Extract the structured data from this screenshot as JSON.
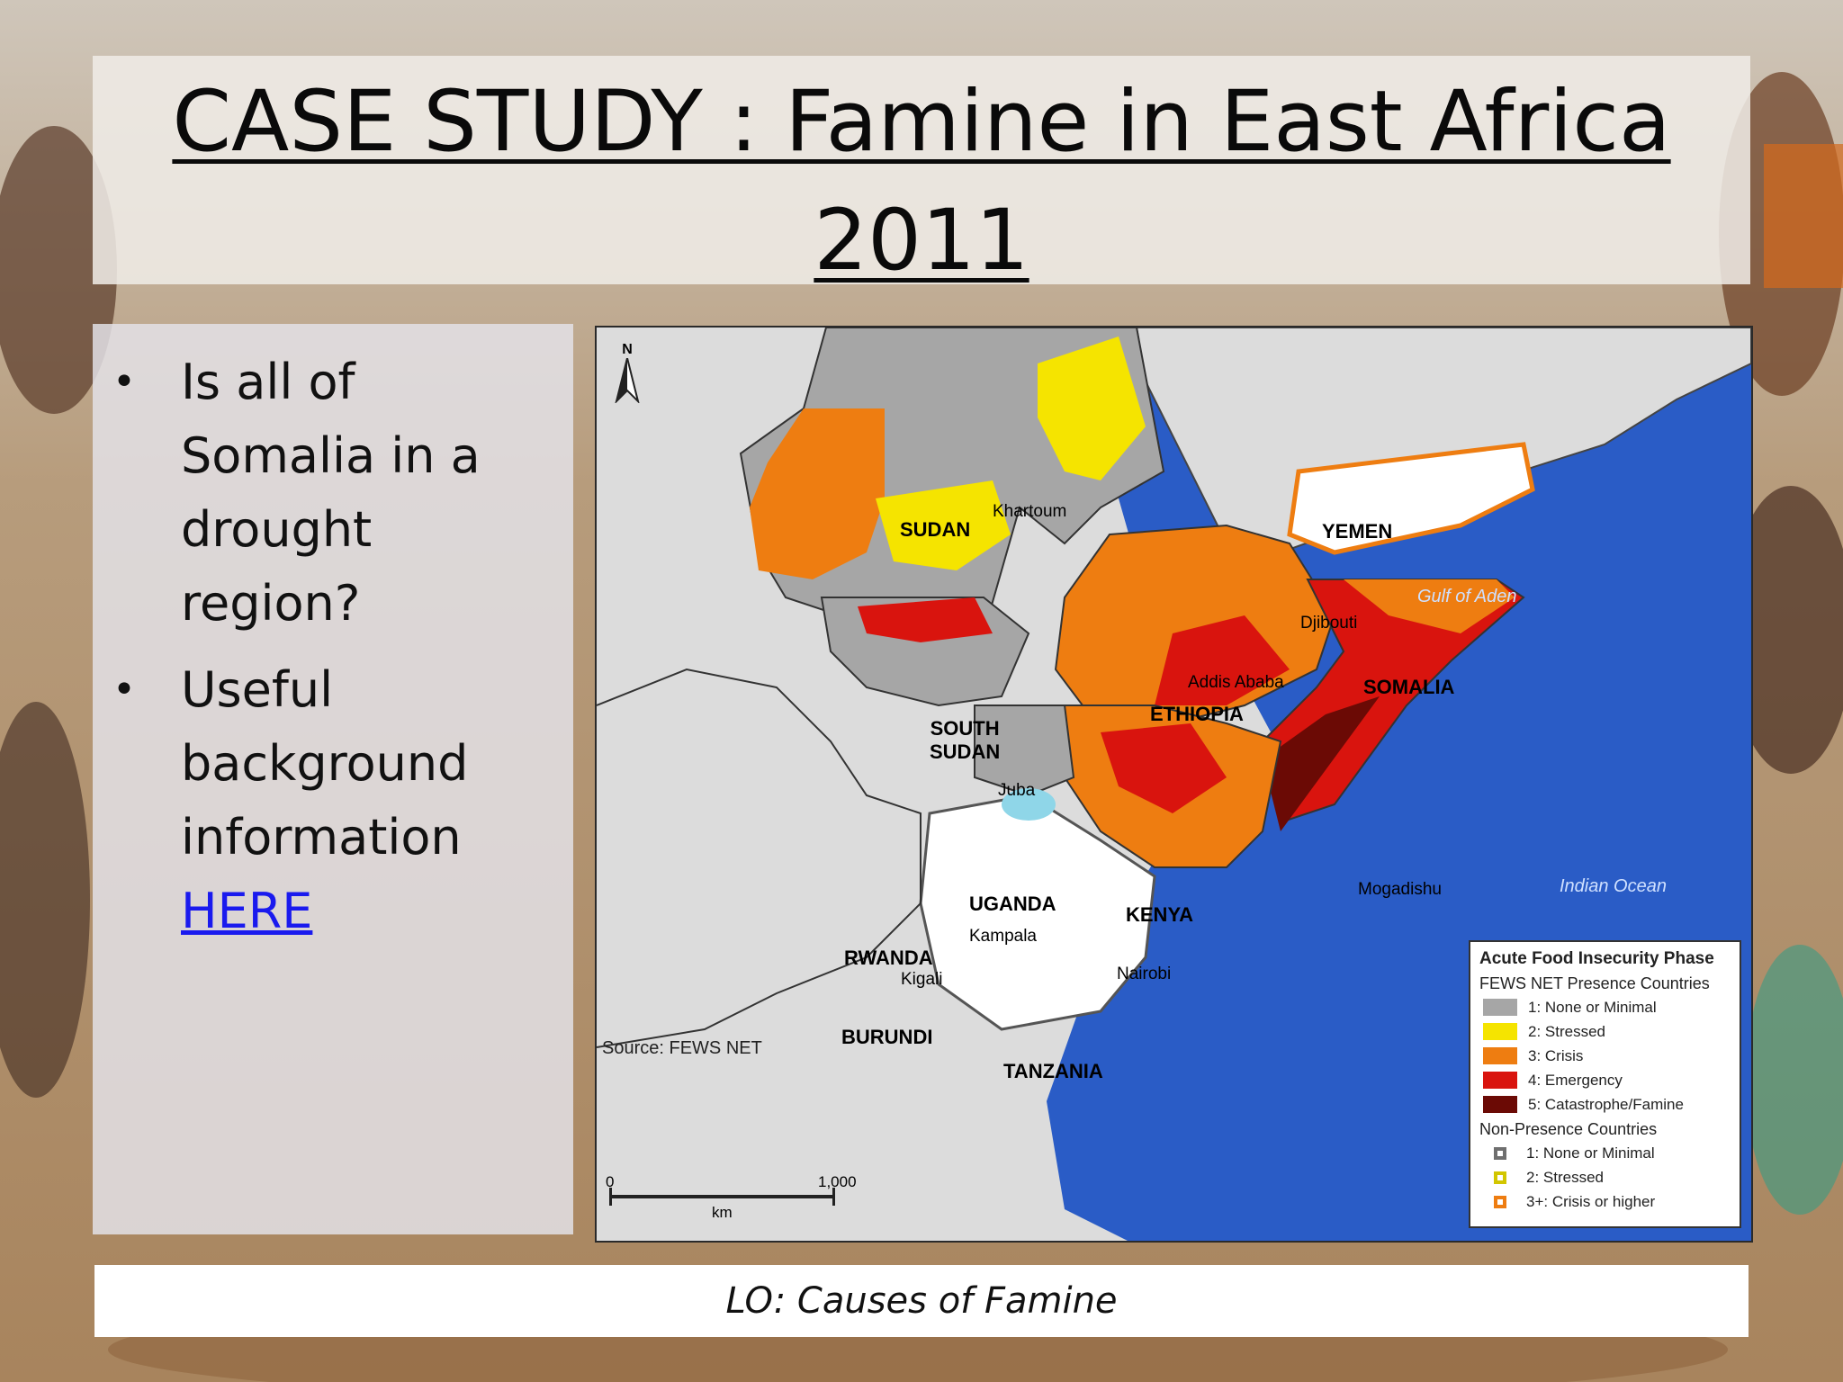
{
  "slide": {
    "title": "CASE STUDY : Famine in East Africa 2011",
    "bullets": [
      {
        "text": "Is all of Somalia in a drought region?"
      },
      {
        "text": "Useful background information",
        "link_text": "HERE"
      }
    ],
    "footer": "LO: Causes of Famine"
  },
  "map": {
    "north_arrow": "N",
    "countries": {
      "sudan": "SUDAN",
      "south_sudan_1": "SOUTH",
      "south_sudan_2": "SUDAN",
      "ethiopia": "ETHIOPIA",
      "somalia": "SOMALIA",
      "kenya": "KENYA",
      "uganda": "UGANDA",
      "rwanda": "RWANDA",
      "burundi": "BURUNDI",
      "tanzania": "TANZANIA",
      "yemen": "YEMEN"
    },
    "cities": {
      "khartoum": "Khartoum",
      "addis_ababa": "Addis Ababa",
      "djibouti": "Djibouti",
      "juba": "Juba",
      "kampala": "Kampala",
      "kigali": "Kigali",
      "nairobi": "Nairobi",
      "mogadishu": "Mogadishu"
    },
    "water": {
      "gulf_of_aden": "Gulf of Aden",
      "indian_ocean": "Indian Ocean"
    },
    "source": "Source: FEWS NET",
    "scale": {
      "start": "0",
      "end": "1,000",
      "unit": "km"
    },
    "legend": {
      "title": "Acute Food Insecurity Phase",
      "presence_title": "FEWS NET Presence Countries",
      "presence": [
        {
          "label": "1: None or Minimal",
          "color": "#a6a6a6"
        },
        {
          "label": "2: Stressed",
          "color": "#f5e400"
        },
        {
          "label": "3: Crisis",
          "color": "#ee7d11"
        },
        {
          "label": "4: Emergency",
          "color": "#d9140e"
        },
        {
          "label": "5: Catastrophe/Famine",
          "color": "#6b0a05"
        }
      ],
      "nonpresence_title": "Non-Presence Countries",
      "nonpresence": [
        {
          "label": "1: None or Minimal",
          "color": "#6f6f6f"
        },
        {
          "label": "2: Stressed",
          "color": "#d2c600"
        },
        {
          "label": "3+: Crisis or higher",
          "color": "#ee7d11"
        }
      ]
    },
    "colors": {
      "sea": "#2a5cc6",
      "land_outside": "#dcdcdc",
      "minimal": "#a6a6a6",
      "stressed": "#f5e400",
      "crisis": "#ee7d11",
      "emergency": "#d9140e",
      "famine": "#6b0a05"
    }
  }
}
